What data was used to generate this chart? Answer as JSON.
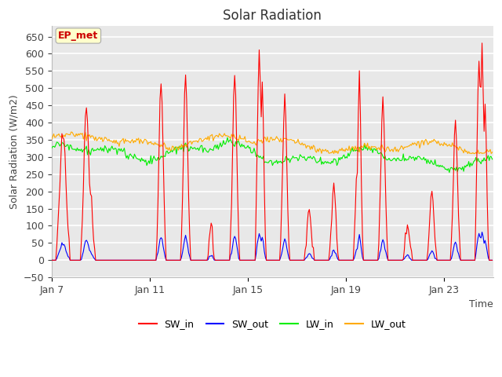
{
  "title": "Solar Radiation",
  "xlabel": "Time",
  "ylabel": "Solar Radiation (W/m2)",
  "ylim": [
    -50,
    680
  ],
  "fig_bg_color": "#ffffff",
  "plot_bg_color": "#e8e8e8",
  "line_colors": {
    "SW_in": "#ff0000",
    "SW_out": "#0000ff",
    "LW_in": "#00ee00",
    "LW_out": "#ffaa00"
  },
  "ep_met_label": "EP_met",
  "ep_met_bg": "#ffffcc",
  "ep_met_text_color": "#cc0000",
  "ep_met_edge_color": "#aaaaaa",
  "n_days": 18,
  "hours_per_day": 24,
  "start_day": 7,
  "tick_days": [
    7,
    11,
    15,
    19,
    23
  ],
  "grid_color": "#ffffff",
  "title_fontsize": 12,
  "axis_label_fontsize": 9,
  "tick_fontsize": 9,
  "legend_fontsize": 9
}
